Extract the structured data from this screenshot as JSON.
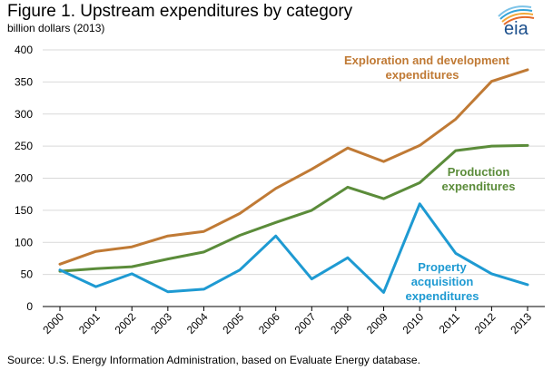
{
  "title": "Figure 1. Upstream expenditures by category",
  "subtitle": "billion dollars (2013)",
  "source": "Source: U.S. Energy Information Administration, based on Evaluate Energy database.",
  "logo_text": "eia",
  "chart_data": {
    "type": "line",
    "x": [
      "2000",
      "2001",
      "2002",
      "2003",
      "2004",
      "2005",
      "2006",
      "2007",
      "2008",
      "2009",
      "2010",
      "2011",
      "2012",
      "2013"
    ],
    "ylim": [
      0,
      400
    ],
    "yticks": [
      0,
      50,
      100,
      150,
      200,
      250,
      300,
      350,
      400
    ],
    "grid": true,
    "series": [
      {
        "name": "Exploration and development expenditures",
        "label_lines": [
          "Exploration and development",
          "expenditures"
        ],
        "color": "#C07A35",
        "values": [
          66,
          86,
          93,
          110,
          117,
          145,
          184,
          214,
          247,
          226,
          251,
          292,
          351,
          369
        ]
      },
      {
        "name": "Production expenditures",
        "label_lines": [
          "Production",
          "expenditures"
        ],
        "color": "#5B8C3A",
        "values": [
          55,
          59,
          62,
          74,
          85,
          111,
          131,
          150,
          186,
          168,
          193,
          243,
          250,
          251
        ]
      },
      {
        "name": "Property acquisition expenditures",
        "label_lines": [
          "Property",
          "acquisition",
          "expenditures"
        ],
        "color": "#1E9AD2",
        "values": [
          57,
          31,
          51,
          23,
          27,
          57,
          110,
          43,
          76,
          22,
          160,
          83,
          51,
          34
        ]
      }
    ]
  }
}
